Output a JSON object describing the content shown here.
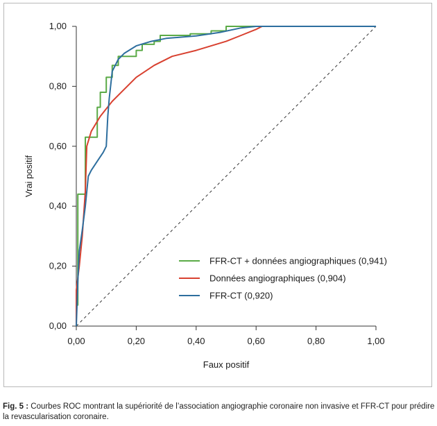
{
  "chart_data": {
    "type": "line",
    "xlabel": "Faux positif",
    "ylabel": "Vrai positif",
    "xlim": [
      0,
      1
    ],
    "ylim": [
      0,
      1
    ],
    "xticks": [
      "0,00",
      "0,20",
      "0,40",
      "0,60",
      "0,80",
      "1,00"
    ],
    "yticks": [
      "0,00",
      "0,20",
      "0,40",
      "0,60",
      "0,80",
      "1,00"
    ],
    "legend_position": "bottom-right",
    "reference_line": {
      "x": [
        0,
        1
      ],
      "y": [
        0,
        1
      ],
      "style": "dashed"
    },
    "series": [
      {
        "name": "FFR-CT + données angiographiques (0,941)",
        "color": "#5aaa46",
        "points": [
          [
            0,
            0
          ],
          [
            0,
            0.07
          ],
          [
            0.005,
            0.07
          ],
          [
            0.005,
            0.44
          ],
          [
            0.03,
            0.44
          ],
          [
            0.03,
            0.63
          ],
          [
            0.07,
            0.63
          ],
          [
            0.07,
            0.73
          ],
          [
            0.08,
            0.73
          ],
          [
            0.08,
            0.78
          ],
          [
            0.1,
            0.78
          ],
          [
            0.1,
            0.83
          ],
          [
            0.12,
            0.83
          ],
          [
            0.12,
            0.87
          ],
          [
            0.14,
            0.87
          ],
          [
            0.14,
            0.9
          ],
          [
            0.2,
            0.9
          ],
          [
            0.2,
            0.92
          ],
          [
            0.22,
            0.92
          ],
          [
            0.22,
            0.94
          ],
          [
            0.26,
            0.94
          ],
          [
            0.26,
            0.95
          ],
          [
            0.28,
            0.95
          ],
          [
            0.28,
            0.97
          ],
          [
            0.38,
            0.97
          ],
          [
            0.38,
            0.975
          ],
          [
            0.45,
            0.975
          ],
          [
            0.45,
            0.985
          ],
          [
            0.5,
            0.985
          ],
          [
            0.5,
            1.0
          ],
          [
            1.0,
            1.0
          ]
        ]
      },
      {
        "name": "Données angiographiques (0,904)",
        "color": "#d8402f",
        "points": [
          [
            0,
            0
          ],
          [
            0,
            0.12
          ],
          [
            0.01,
            0.2
          ],
          [
            0.02,
            0.3
          ],
          [
            0.03,
            0.45
          ],
          [
            0.035,
            0.6
          ],
          [
            0.05,
            0.65
          ],
          [
            0.08,
            0.7
          ],
          [
            0.12,
            0.75
          ],
          [
            0.16,
            0.79
          ],
          [
            0.2,
            0.83
          ],
          [
            0.26,
            0.87
          ],
          [
            0.32,
            0.9
          ],
          [
            0.4,
            0.92
          ],
          [
            0.45,
            0.935
          ],
          [
            0.5,
            0.95
          ],
          [
            0.55,
            0.97
          ],
          [
            0.6,
            0.99
          ],
          [
            0.62,
            1.0
          ],
          [
            1.0,
            1.0
          ]
        ]
      },
      {
        "name": "FFR-CT (0,920)",
        "color": "#2d6e9e",
        "points": [
          [
            0,
            0
          ],
          [
            0.005,
            0.15
          ],
          [
            0.01,
            0.25
          ],
          [
            0.02,
            0.32
          ],
          [
            0.03,
            0.4
          ],
          [
            0.04,
            0.5
          ],
          [
            0.05,
            0.52
          ],
          [
            0.07,
            0.55
          ],
          [
            0.09,
            0.58
          ],
          [
            0.1,
            0.6
          ],
          [
            0.105,
            0.7
          ],
          [
            0.11,
            0.76
          ],
          [
            0.12,
            0.85
          ],
          [
            0.14,
            0.89
          ],
          [
            0.16,
            0.91
          ],
          [
            0.2,
            0.935
          ],
          [
            0.25,
            0.95
          ],
          [
            0.3,
            0.96
          ],
          [
            0.4,
            0.968
          ],
          [
            0.48,
            0.98
          ],
          [
            0.55,
            0.995
          ],
          [
            0.6,
            1.0
          ],
          [
            1.0,
            1.0
          ]
        ]
      }
    ]
  },
  "caption": {
    "label": "Fig. 5 :",
    "text": " Courbes ROC montrant la supériorité de l’association angiographie coronaire non invasive et FFR-CT pour prédire la revascularisation coronaire."
  }
}
